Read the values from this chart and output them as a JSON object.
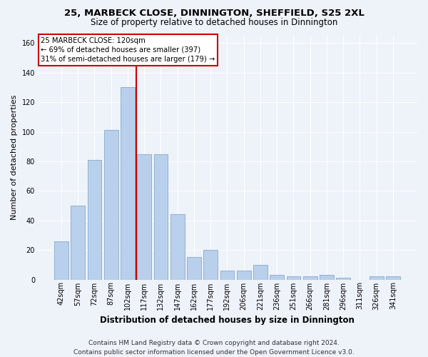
{
  "title1": "25, MARBECK CLOSE, DINNINGTON, SHEFFIELD, S25 2XL",
  "title2": "Size of property relative to detached houses in Dinnington",
  "xlabel": "Distribution of detached houses by size in Dinnington",
  "ylabel": "Number of detached properties",
  "categories": [
    "42sqm",
    "57sqm",
    "72sqm",
    "87sqm",
    "102sqm",
    "117sqm",
    "132sqm",
    "147sqm",
    "162sqm",
    "177sqm",
    "192sqm",
    "206sqm",
    "221sqm",
    "236sqm",
    "251sqm",
    "266sqm",
    "281sqm",
    "296sqm",
    "311sqm",
    "326sqm",
    "341sqm"
  ],
  "values": [
    26,
    50,
    81,
    101,
    130,
    85,
    85,
    44,
    15,
    20,
    6,
    6,
    10,
    3,
    2,
    2,
    3,
    1,
    0,
    2,
    2
  ],
  "bar_color": "#b8d0eb",
  "bar_edge_color": "#85aacd",
  "vline_x": 5.0,
  "vline_color": "#cc0000",
  "annotation_line1": "25 MARBECK CLOSE: 120sqm",
  "annotation_line2": "← 69% of detached houses are smaller (397)",
  "annotation_line3": "31% of semi-detached houses are larger (179) →",
  "annotation_box_color": "#ffffff",
  "annotation_box_edge": "#cc0000",
  "ylim": [
    0,
    165
  ],
  "yticks": [
    0,
    20,
    40,
    60,
    80,
    100,
    120,
    140,
    160
  ],
  "footer1": "Contains HM Land Registry data © Crown copyright and database right 2024.",
  "footer2": "Contains public sector information licensed under the Open Government Licence v3.0.",
  "bg_color": "#eef2f9",
  "grid_color": "#ffffff",
  "title1_fontsize": 9.5,
  "title2_fontsize": 8.5,
  "ylabel_fontsize": 8,
  "xlabel_fontsize": 8.5,
  "tick_fontsize": 7,
  "footer_fontsize": 6.5
}
